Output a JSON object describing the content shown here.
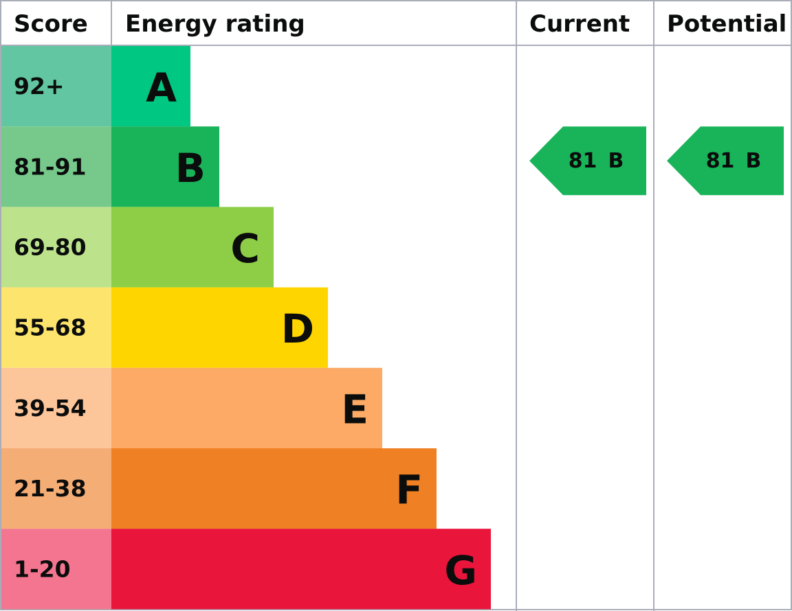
{
  "header": {
    "score": "Score",
    "rating": "Energy rating",
    "current": "Current",
    "potential": "Potential"
  },
  "rows": [
    {
      "score": "92+",
      "band": "A",
      "score_color": "#62c6a3",
      "color": "#00c781"
    },
    {
      "score": "81-91",
      "band": "B",
      "score_color": "#76c98b",
      "color": "#19b459"
    },
    {
      "score": "69-80",
      "band": "C",
      "score_color": "#bce28c",
      "color": "#8dce46"
    },
    {
      "score": "55-68",
      "band": "D",
      "score_color": "#fde46c",
      "color": "#ffd500"
    },
    {
      "score": "39-54",
      "band": "E",
      "score_color": "#fdc59a",
      "color": "#fcaa65"
    },
    {
      "score": "21-38",
      "band": "F",
      "score_color": "#f4ad75",
      "color": "#ef8023"
    },
    {
      "score": "1-20",
      "band": "G",
      "score_color": "#f3758f",
      "color": "#e9153b"
    }
  ],
  "current": {
    "score": 81,
    "band": "B"
  },
  "potential": {
    "score": 81,
    "band": "B"
  }
}
